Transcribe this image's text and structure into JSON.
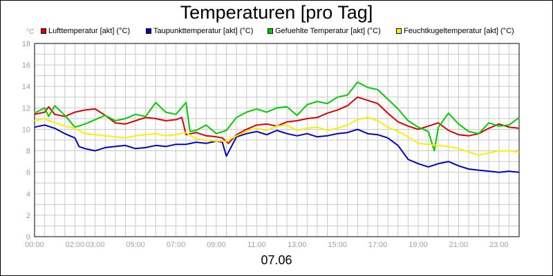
{
  "chart_data": {
    "type": "line",
    "title": "Temperaturen [pro Tag]",
    "xlabel": "07.06",
    "ylabel": "°C",
    "ylim": [
      0,
      18
    ],
    "xlim": [
      0,
      24
    ],
    "y_ticks": [
      "0",
      "2",
      "4",
      "6",
      "8",
      "10",
      "12",
      "14",
      "16",
      "18"
    ],
    "x_tick_labels": [
      "00:00",
      "02:00",
      "03:00",
      "05:00",
      "07:00",
      "09:00",
      "11:00",
      "13:00",
      "15:00",
      "17:00",
      "19:00",
      "21:00",
      "23:00"
    ],
    "x_tick_hours": [
      0,
      2,
      3,
      5,
      7,
      9,
      11,
      13,
      15,
      17,
      19,
      21,
      23
    ],
    "grid": true,
    "legend_position": "top",
    "series": [
      {
        "name": "Lufttemperatur [akt] (°C)",
        "color": "#dd0000",
        "x": [
          0,
          0.5,
          0.7,
          1,
          1.5,
          2,
          2.5,
          3,
          3.5,
          4,
          4.5,
          5,
          5.5,
          6,
          6.5,
          7,
          7.3,
          7.5,
          8,
          8.5,
          9,
          9.3,
          9.6,
          10,
          10.5,
          11,
          11.5,
          12,
          12.5,
          13,
          13.5,
          14,
          14.5,
          15,
          15.5,
          16,
          16.5,
          17,
          17.5,
          18,
          18.5,
          19,
          19.5,
          20,
          20.5,
          21,
          21.5,
          22,
          22.5,
          23,
          23.5,
          24
        ],
        "values": [
          11.4,
          11.6,
          12.1,
          11.4,
          11.2,
          11.6,
          11.8,
          11.9,
          11.3,
          10.6,
          10.5,
          10.8,
          11.1,
          11.0,
          10.8,
          10.9,
          11.1,
          9.5,
          9.7,
          9.4,
          9.3,
          9.2,
          8.7,
          9.5,
          10.0,
          10.4,
          10.5,
          10.3,
          10.7,
          10.8,
          11.0,
          11.1,
          11.5,
          11.8,
          12.2,
          13.0,
          12.7,
          12.4,
          11.5,
          10.7,
          10.3,
          10.0,
          10.3,
          10.6,
          9.9,
          9.5,
          9.4,
          9.6,
          10.1,
          10.5,
          10.2,
          10.1
        ]
      },
      {
        "name": "Taupunkttemperatur [akt] (°C)",
        "color": "#0000cc",
        "x": [
          0,
          0.5,
          1,
          1.5,
          2,
          2.2,
          2.5,
          3,
          3.5,
          4,
          4.5,
          5,
          5.5,
          6,
          6.5,
          7,
          7.5,
          8,
          8.5,
          9,
          9.3,
          9.5,
          10,
          10.5,
          11,
          11.5,
          12,
          12.5,
          13,
          13.5,
          14,
          14.5,
          15,
          15.5,
          16,
          16.5,
          17,
          17.5,
          18,
          18.5,
          19,
          19.5,
          20,
          20.5,
          21,
          21.5,
          22,
          22.5,
          23,
          23.5,
          24
        ],
        "values": [
          10.2,
          10.4,
          10.1,
          9.6,
          9.2,
          8.4,
          8.2,
          8.0,
          8.3,
          8.4,
          8.5,
          8.2,
          8.3,
          8.5,
          8.4,
          8.6,
          8.6,
          8.8,
          8.7,
          8.9,
          8.8,
          7.5,
          9.3,
          9.6,
          9.8,
          9.5,
          9.9,
          9.6,
          9.4,
          9.6,
          9.3,
          9.4,
          9.6,
          9.7,
          10.0,
          9.6,
          9.5,
          9.2,
          8.5,
          7.2,
          6.8,
          6.5,
          6.8,
          7.0,
          6.6,
          6.3,
          6.2,
          6.1,
          6.0,
          6.1,
          6.0
        ]
      },
      {
        "name": "Gefuehlte Temperatur [akt] (°C)",
        "color": "#00cc00",
        "x": [
          0,
          0.5,
          0.7,
          1,
          1.5,
          2,
          2.5,
          3,
          3.5,
          4,
          4.5,
          5,
          5.5,
          6,
          6.5,
          7,
          7.5,
          7.7,
          8,
          8.5,
          9,
          9.5,
          10,
          10.5,
          11,
          11.5,
          12,
          12.5,
          13,
          13.5,
          14,
          14.5,
          15,
          15.5,
          16,
          16.5,
          17,
          17.5,
          18,
          18.5,
          19,
          19.5,
          19.8,
          20,
          20.5,
          21,
          21.5,
          22,
          22.5,
          23,
          23.5,
          24
        ],
        "values": [
          11.5,
          12.0,
          11.2,
          12.2,
          11.3,
          10.2,
          10.5,
          10.9,
          11.3,
          10.8,
          11.0,
          11.4,
          11.2,
          12.5,
          11.6,
          11.4,
          12.5,
          9.8,
          9.9,
          10.4,
          9.6,
          9.9,
          11.1,
          11.6,
          11.9,
          11.6,
          12.0,
          12.1,
          11.3,
          12.3,
          12.6,
          12.4,
          13.0,
          13.2,
          14.4,
          13.9,
          13.7,
          12.8,
          11.9,
          10.8,
          10.2,
          9.8,
          8.0,
          10.2,
          11.5,
          10.5,
          9.8,
          9.6,
          10.6,
          10.3,
          10.4,
          11.1
        ]
      },
      {
        "name": "Feuchtkugeltemperatur [akt] (°C)",
        "color": "#ffee00",
        "x": [
          0,
          0.5,
          1,
          1.5,
          2,
          2.5,
          3,
          3.5,
          4,
          4.5,
          5,
          5.5,
          6,
          6.5,
          7,
          7.5,
          8,
          8.5,
          9,
          9.5,
          10,
          10.5,
          11,
          11.5,
          12,
          12.5,
          13,
          13.5,
          14,
          14.5,
          15,
          15.5,
          16,
          16.5,
          17,
          17.5,
          18,
          18.5,
          19,
          19.5,
          20,
          20.5,
          21,
          21.5,
          22,
          22.5,
          23,
          23.5,
          24
        ],
        "values": [
          10.8,
          11.0,
          10.6,
          10.3,
          10.1,
          9.6,
          9.5,
          9.4,
          9.3,
          9.2,
          9.4,
          9.5,
          9.6,
          9.4,
          9.5,
          9.7,
          9.1,
          9.0,
          8.9,
          8.9,
          9.4,
          9.8,
          10.1,
          9.9,
          10.3,
          10.4,
          9.9,
          10.1,
          10.2,
          9.9,
          10.1,
          10.4,
          10.9,
          11.1,
          10.8,
          10.2,
          9.8,
          9.3,
          8.7,
          8.6,
          8.5,
          8.4,
          8.2,
          7.9,
          7.6,
          7.8,
          8.0,
          8.0,
          7.9
        ]
      }
    ]
  }
}
